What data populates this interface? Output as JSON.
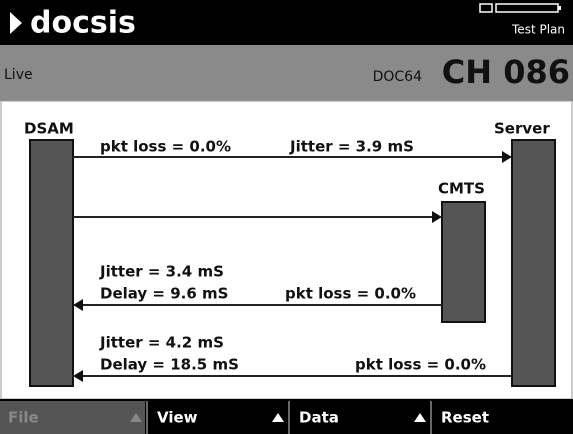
{
  "header": {
    "title": "docsis",
    "mode": "Test Plan"
  },
  "status": {
    "left": "Live",
    "channel_prefix": "DOC64",
    "channel": "CH 086"
  },
  "diagram": {
    "nodes": [
      "DSAM",
      "Server",
      "CMTS"
    ],
    "links": [
      {
        "labels": [
          "pkt loss = 0.0%",
          "Jitter = 3.9 mS"
        ]
      },
      {
        "labels": []
      },
      {
        "labels": [
          "Jitter = 3.4 mS",
          "Delay = 9.6 mS",
          "pkt loss = 0.0%"
        ]
      },
      {
        "labels": [
          "Jitter = 4.2 mS",
          "Delay = 18.5 mS",
          "pkt loss = 0.0%"
        ]
      }
    ]
  },
  "menu": [
    "File",
    "View",
    "Data",
    "Reset"
  ]
}
